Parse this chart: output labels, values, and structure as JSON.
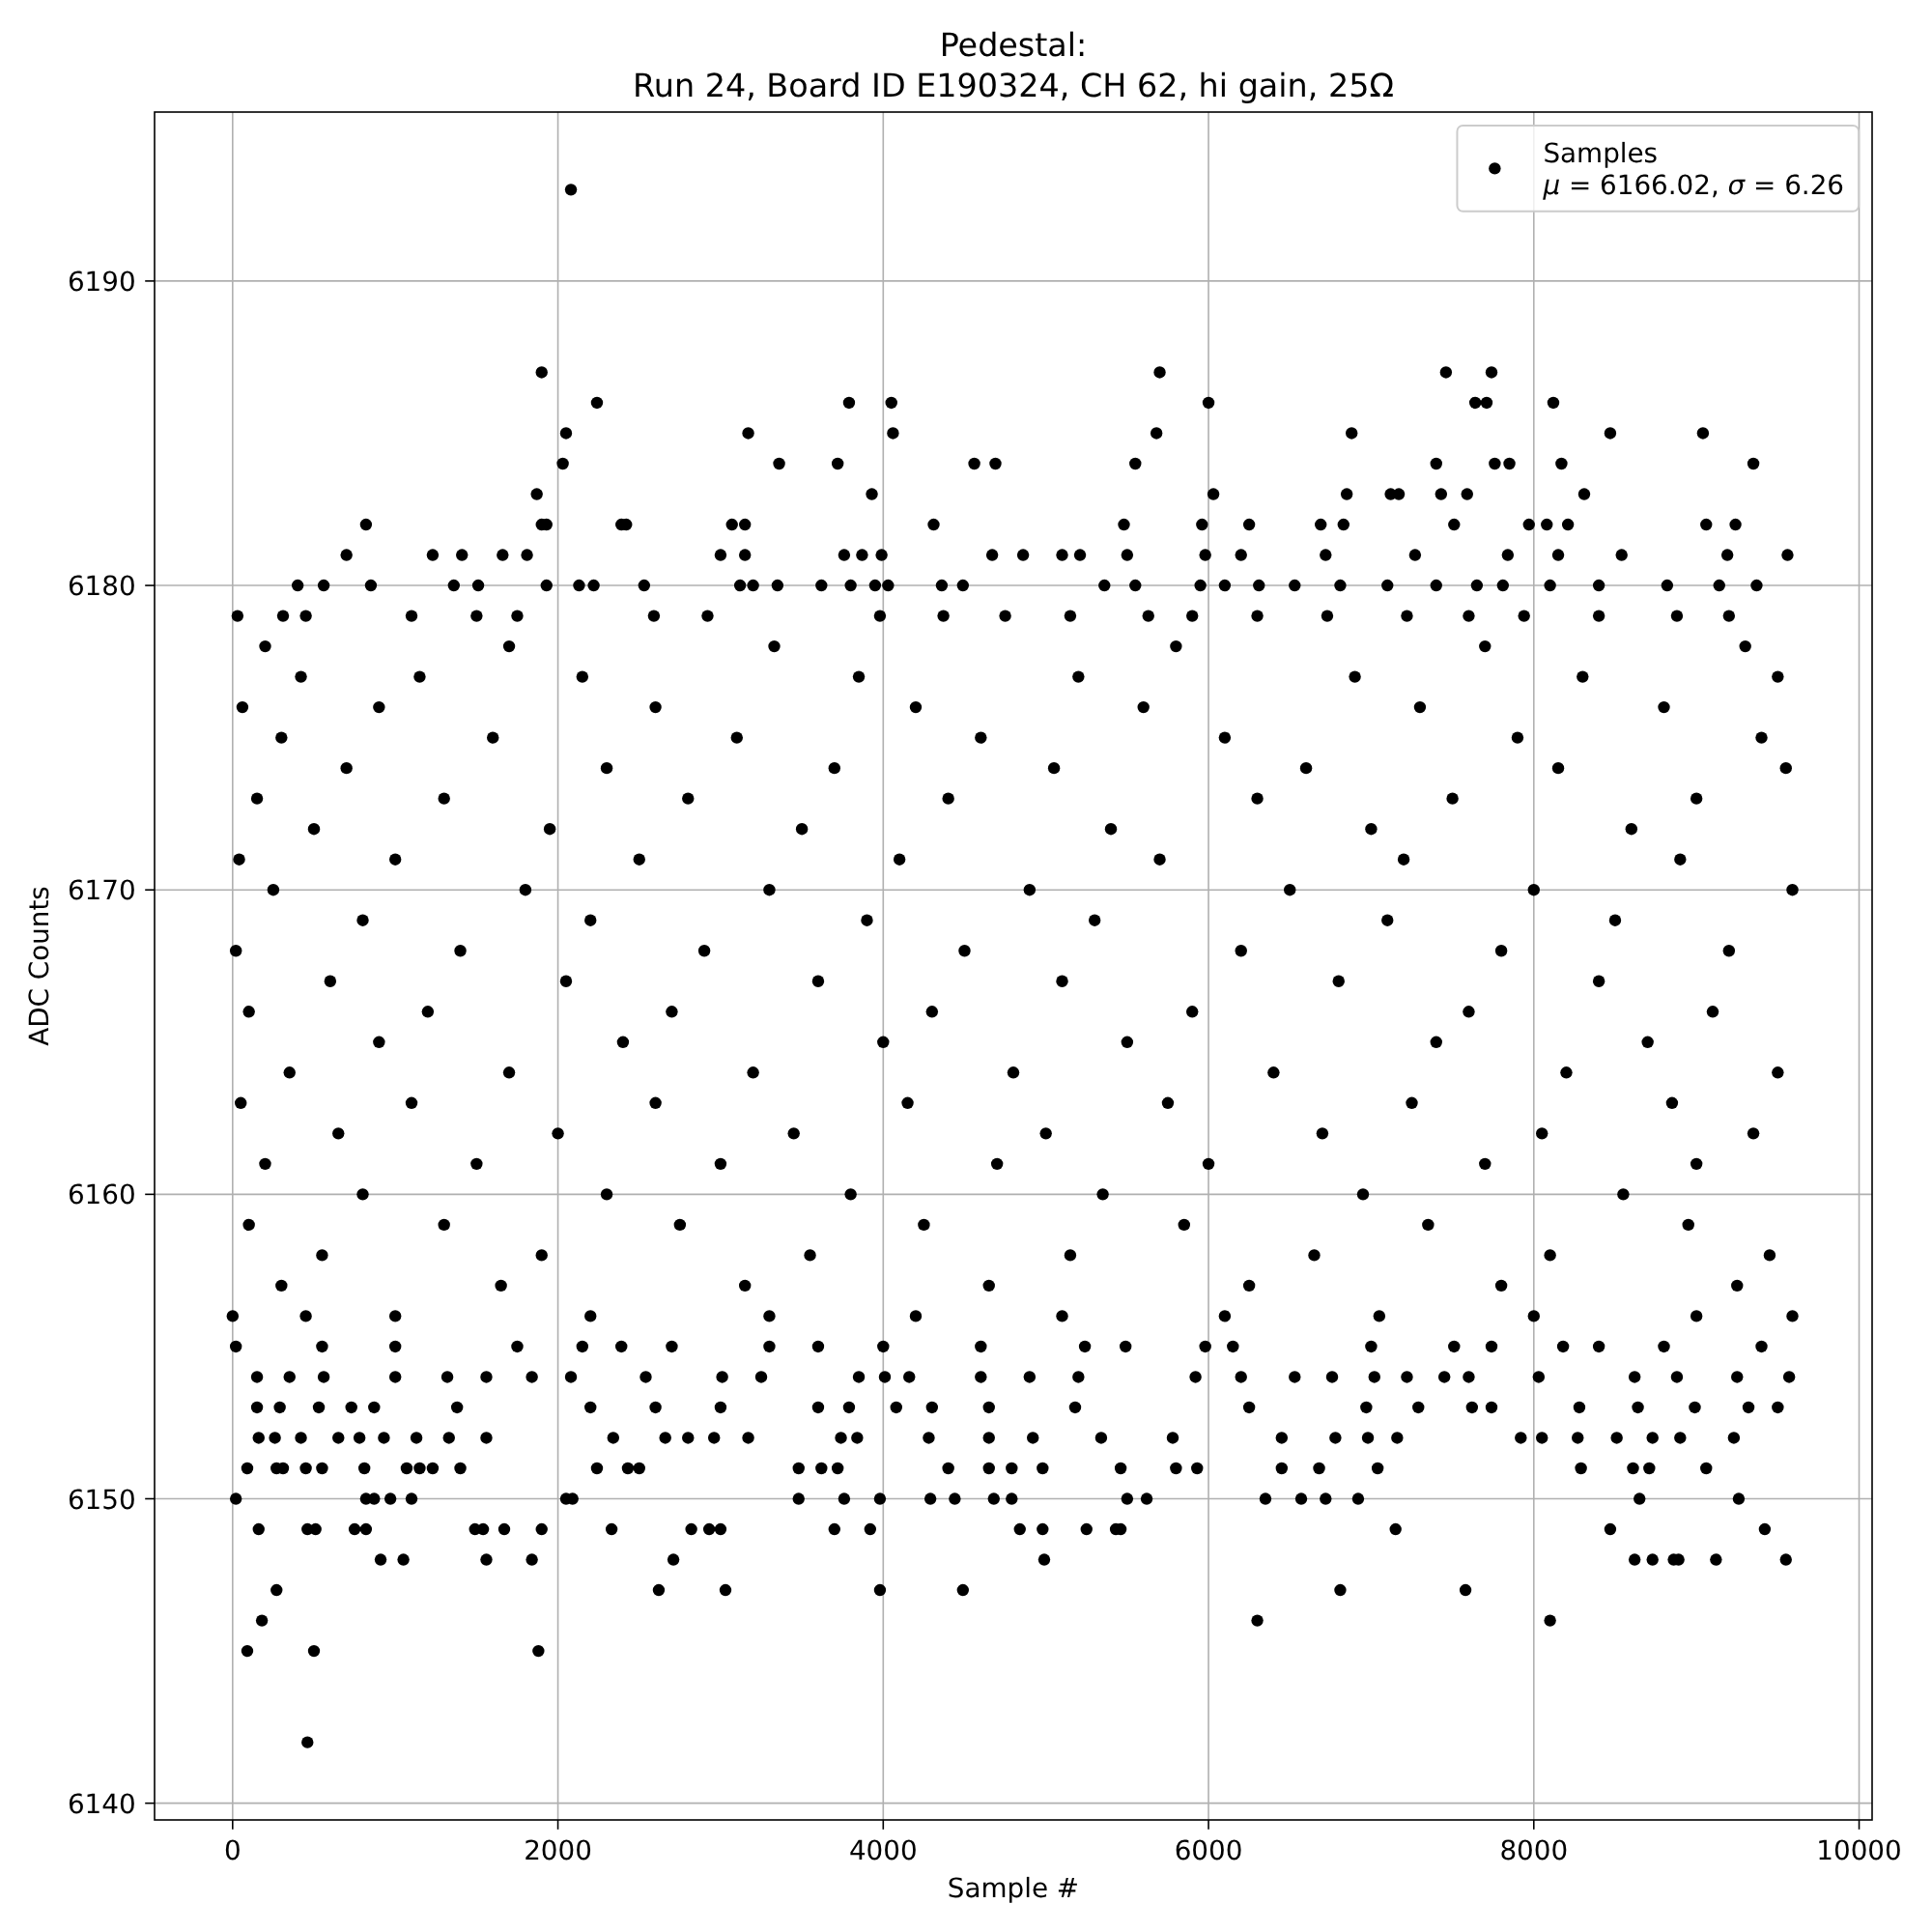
{
  "chart_data": {
    "type": "scatter",
    "title": "Pedestal:",
    "subtitle": "Run 24, Board ID E190324, CH 62, hi gain, 25Ω",
    "xlabel": "Sample #",
    "ylabel": "ADC Counts",
    "annotations": [
      "μ = 6166.02, σ = 6.26"
    ],
    "xlim": [
      -480,
      10080
    ],
    "ylim": [
      6139.45,
      6195.55
    ],
    "xticks": [
      0,
      2000,
      4000,
      6000,
      8000,
      10000
    ],
    "yticks": [
      6140,
      6150,
      6160,
      6170,
      6180,
      6190
    ],
    "grid": true,
    "legend": "top right",
    "marker": "circle",
    "series": [
      {
        "name": "Samples",
        "color": "#000000",
        "x": [
          2080,
          1900,
          5700,
          7460,
          7740,
          2240,
          3790,
          4050,
          6000,
          7640,
          7710,
          8120,
          2050,
          3170,
          4060,
          5680,
          6880,
          8470,
          9040,
          2030,
          3360,
          3720,
          4560,
          4690,
          5550,
          7400,
          7760,
          7850,
          8170,
          9350,
          1870,
          3930,
          6030,
          6850,
          7120,
          7170,
          7430,
          7590,
          8310,
          820,
          1900,
          1930,
          2390,
          2420,
          3070,
          3150,
          4310,
          5480,
          5960,
          6250,
          6690,
          6830,
          7510,
          7970,
          8080,
          8210,
          9060,
          9240,
          700,
          1230,
          1410,
          1660,
          1810,
          3000,
          3150,
          3760,
          3870,
          3990,
          4670,
          4860,
          5100,
          5210,
          5500,
          5980,
          6200,
          6720,
          7270,
          7840,
          8150,
          8540,
          9190,
          9560,
          400,
          560,
          850,
          1360,
          1510,
          1930,
          2130,
          2220,
          2530,
          3120,
          3200,
          3350,
          3620,
          3800,
          3950,
          4030,
          4360,
          4490,
          5360,
          5550,
          5950,
          6100,
          6310,
          6530,
          6810,
          7100,
          7400,
          7650,
          7810,
          8100,
          8400,
          8820,
          9140,
          9370,
          30,
          310,
          450,
          1100,
          1500,
          1750,
          2590,
          2920,
          3980,
          4370,
          4750,
          5150,
          5630,
          5900,
          6300,
          6730,
          7220,
          7600,
          7940,
          8400,
          8880,
          9200,
          200,
          1700,
          3330,
          5800,
          7700,
          9300,
          420,
          1150,
          2150,
          3850,
          5200,
          6900,
          8300,
          9500,
          60,
          900,
          2600,
          4200,
          5600,
          7300,
          8800,
          300,
          1600,
          3100,
          4600,
          6100,
          7900,
          9400,
          700,
          2300,
          3700,
          5050,
          6600,
          8150,
          9550,
          150,
          1300,
          2800,
          4400,
          6300,
          7500,
          9000,
          500,
          1950,
          3500,
          5400,
          7000,
          8600,
          40,
          1000,
          2500,
          4100,
          5700,
          7200,
          8900,
          250,
          1800,
          3300,
          4900,
          6500,
          8000,
          9590,
          800,
          2200,
          3900,
          5300,
          7100,
          8500,
          20,
          1400,
          2900,
          4500,
          6200,
          7800,
          9200,
          600,
          2050,
          3600,
          5100,
          6800,
          8400,
          100,
          1200,
          2700,
          4300,
          5900,
          7600,
          9100,
          900,
          2400,
          4000,
          5500,
          7400,
          8700,
          350,
          1700,
          3200,
          4800,
          6400,
          8200,
          9500,
          50,
          1100,
          2600,
          4150,
          5750,
          7250,
          8850,
          650,
          2000,
          3450,
          5000,
          6700,
          8050,
          9350,
          200,
          1500,
          3000,
          4700,
          6000,
          7700,
          9000,
          800,
          2300,
          3800,
          5350,
          6950,
          8550,
          100,
          1300,
          2750,
          4250,
          5850,
          7350,
          8950,
          550,
          1900,
          3550,
          5150,
          6650,
          8100,
          9450,
          300,
          1650,
          3150,
          4650,
          6250,
          7800,
          9250,
          0,
          450,
          1000,
          2200,
          3300,
          4200,
          5100,
          6100,
          7050,
          8000,
          9000,
          9590,
          20,
          550,
          1000,
          1750,
          2150,
          2390,
          2700,
          3300,
          3600,
          4000,
          4600,
          5240,
          5490,
          5980,
          6150,
          7000,
          7510,
          7740,
          8180,
          8400,
          8800,
          9400,
          150,
          350,
          560,
          1000,
          1320,
          1560,
          1840,
          2080,
          2540,
          3010,
          3250,
          3850,
          4010,
          4160,
          4600,
          4900,
          5200,
          5920,
          6200,
          6530,
          6760,
          7020,
          7220,
          7450,
          7600,
          8030,
          8620,
          8880,
          9250,
          9570,
          150,
          290,
          530,
          730,
          870,
          1380,
          2200,
          2600,
          3000,
          3600,
          3790,
          4080,
          4300,
          4650,
          5180,
          6250,
          6970,
          7290,
          7620,
          7740,
          8280,
          8640,
          8990,
          9320,
          9500,
          160,
          260,
          420,
          650,
          780,
          930,
          1130,
          1330,
          1560,
          2340,
          2660,
          2800,
          2960,
          3170,
          3740,
          3840,
          4280,
          4650,
          4920,
          5340,
          5780,
          6450,
          6780,
          6980,
          7160,
          7920,
          8050,
          8270,
          8510,
          8730,
          8900,
          9230,
          90,
          270,
          310,
          450,
          550,
          810,
          1070,
          1150,
          1230,
          1400,
          2240,
          2430,
          2500,
          3480,
          3620,
          3720,
          4400,
          4650,
          4790,
          4980,
          5460,
          5800,
          5930,
          6450,
          6680,
          7040,
          8290,
          8610,
          8710,
          9060,
          20,
          820,
          870,
          970,
          1100,
          2050,
          2090,
          3480,
          3760,
          3980,
          4290,
          4440,
          4680,
          4790,
          5500,
          5620,
          6350,
          6570,
          6720,
          6920,
          8650,
          9260,
          160,
          460,
          510,
          750,
          820,
          1490,
          1540,
          1670,
          1900,
          2330,
          2820,
          2930,
          3000,
          3700,
          3920,
          4840,
          4980,
          5250,
          5430,
          5460,
          7150,
          8470,
          9420,
          910,
          1050,
          1560,
          1840,
          2710,
          4990,
          8620,
          8730,
          8860,
          8890,
          9120,
          9550,
          270,
          2620,
          3030,
          3980,
          4490,
          6810,
          7580,
          180,
          6300,
          8100,
          90,
          500,
          1880,
          460
        ],
        "values": [
          6193,
          6187,
          6187,
          6187,
          6187,
          6186,
          6186,
          6186,
          6186,
          6186,
          6186,
          6186,
          6185,
          6185,
          6185,
          6185,
          6185,
          6185,
          6185,
          6184,
          6184,
          6184,
          6184,
          6184,
          6184,
          6184,
          6184,
          6184,
          6184,
          6184,
          6183,
          6183,
          6183,
          6183,
          6183,
          6183,
          6183,
          6183,
          6183,
          6182,
          6182,
          6182,
          6182,
          6182,
          6182,
          6182,
          6182,
          6182,
          6182,
          6182,
          6182,
          6182,
          6182,
          6182,
          6182,
          6182,
          6182,
          6182,
          6181,
          6181,
          6181,
          6181,
          6181,
          6181,
          6181,
          6181,
          6181,
          6181,
          6181,
          6181,
          6181,
          6181,
          6181,
          6181,
          6181,
          6181,
          6181,
          6181,
          6181,
          6181,
          6181,
          6181,
          6180,
          6180,
          6180,
          6180,
          6180,
          6180,
          6180,
          6180,
          6180,
          6180,
          6180,
          6180,
          6180,
          6180,
          6180,
          6180,
          6180,
          6180,
          6180,
          6180,
          6180,
          6180,
          6180,
          6180,
          6180,
          6180,
          6180,
          6180,
          6180,
          6180,
          6180,
          6180,
          6180,
          6180,
          6179,
          6179,
          6179,
          6179,
          6179,
          6179,
          6179,
          6179,
          6179,
          6179,
          6179,
          6179,
          6179,
          6179,
          6179,
          6179,
          6179,
          6179,
          6179,
          6179,
          6179,
          6179,
          6178,
          6178,
          6178,
          6178,
          6178,
          6178,
          6177,
          6177,
          6177,
          6177,
          6177,
          6177,
          6177,
          6177,
          6176,
          6176,
          6176,
          6176,
          6176,
          6176,
          6176,
          6175,
          6175,
          6175,
          6175,
          6175,
          6175,
          6175,
          6174,
          6174,
          6174,
          6174,
          6174,
          6174,
          6174,
          6173,
          6173,
          6173,
          6173,
          6173,
          6173,
          6173,
          6172,
          6172,
          6172,
          6172,
          6172,
          6172,
          6171,
          6171,
          6171,
          6171,
          6171,
          6171,
          6171,
          6170,
          6170,
          6170,
          6170,
          6170,
          6170,
          6170,
          6169,
          6169,
          6169,
          6169,
          6169,
          6169,
          6168,
          6168,
          6168,
          6168,
          6168,
          6168,
          6168,
          6167,
          6167,
          6167,
          6167,
          6167,
          6167,
          6166,
          6166,
          6166,
          6166,
          6166,
          6166,
          6166,
          6165,
          6165,
          6165,
          6165,
          6165,
          6165,
          6164,
          6164,
          6164,
          6164,
          6164,
          6164,
          6164,
          6163,
          6163,
          6163,
          6163,
          6163,
          6163,
          6163,
          6162,
          6162,
          6162,
          6162,
          6162,
          6162,
          6162,
          6161,
          6161,
          6161,
          6161,
          6161,
          6161,
          6161,
          6160,
          6160,
          6160,
          6160,
          6160,
          6160,
          6159,
          6159,
          6159,
          6159,
          6159,
          6159,
          6159,
          6158,
          6158,
          6158,
          6158,
          6158,
          6158,
          6158,
          6157,
          6157,
          6157,
          6157,
          6157,
          6157,
          6157,
          6156,
          6156,
          6156,
          6156,
          6156,
          6156,
          6156,
          6156,
          6156,
          6156,
          6156,
          6156,
          6155,
          6155,
          6155,
          6155,
          6155,
          6155,
          6155,
          6155,
          6155,
          6155,
          6155,
          6155,
          6155,
          6155,
          6155,
          6155,
          6155,
          6155,
          6155,
          6155,
          6155,
          6155,
          6154,
          6154,
          6154,
          6154,
          6154,
          6154,
          6154,
          6154,
          6154,
          6154,
          6154,
          6154,
          6154,
          6154,
          6154,
          6154,
          6154,
          6154,
          6154,
          6154,
          6154,
          6154,
          6154,
          6154,
          6154,
          6154,
          6154,
          6154,
          6154,
          6154,
          6153,
          6153,
          6153,
          6153,
          6153,
          6153,
          6153,
          6153,
          6153,
          6153,
          6153,
          6153,
          6153,
          6153,
          6153,
          6153,
          6153,
          6153,
          6153,
          6153,
          6153,
          6153,
          6153,
          6153,
          6153,
          6152,
          6152,
          6152,
          6152,
          6152,
          6152,
          6152,
          6152,
          6152,
          6152,
          6152,
          6152,
          6152,
          6152,
          6152,
          6152,
          6152,
          6152,
          6152,
          6152,
          6152,
          6152,
          6152,
          6152,
          6152,
          6152,
          6152,
          6152,
          6152,
          6152,
          6152,
          6152,
          6151,
          6151,
          6151,
          6151,
          6151,
          6151,
          6151,
          6151,
          6151,
          6151,
          6151,
          6151,
          6151,
          6151,
          6151,
          6151,
          6151,
          6151,
          6151,
          6151,
          6151,
          6151,
          6151,
          6151,
          6151,
          6151,
          6151,
          6151,
          6151,
          6151,
          6150,
          6150,
          6150,
          6150,
          6150,
          6150,
          6150,
          6150,
          6150,
          6150,
          6150,
          6150,
          6150,
          6150,
          6150,
          6150,
          6150,
          6150,
          6150,
          6150,
          6150,
          6150,
          6149,
          6149,
          6149,
          6149,
          6149,
          6149,
          6149,
          6149,
          6149,
          6149,
          6149,
          6149,
          6149,
          6149,
          6149,
          6149,
          6149,
          6149,
          6149,
          6149,
          6149,
          6149,
          6149,
          6148,
          6148,
          6148,
          6148,
          6148,
          6148,
          6148,
          6148,
          6148,
          6148,
          6148,
          6148,
          6147,
          6147,
          6147,
          6147,
          6147,
          6147,
          6147,
          6146,
          6146,
          6146,
          6145,
          6145,
          6145,
          6142
        ]
      }
    ]
  }
}
